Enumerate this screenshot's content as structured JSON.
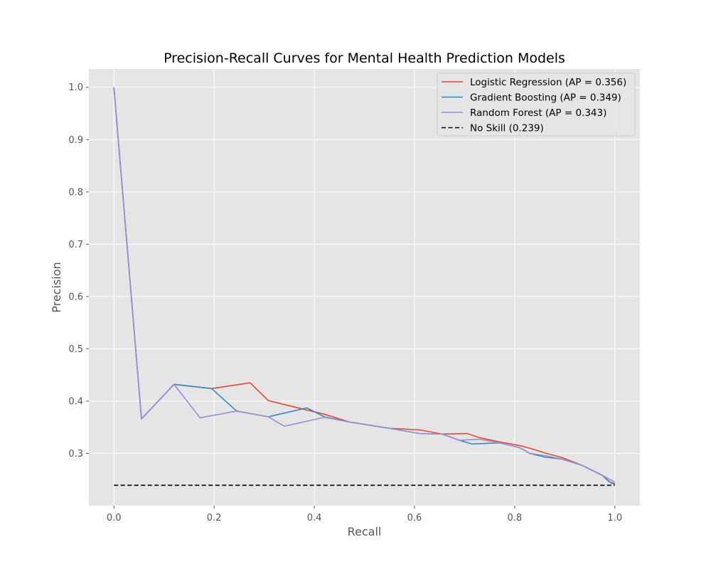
{
  "chart_data": {
    "type": "line",
    "title": "Precision-Recall Curves for Mental Health Prediction Models",
    "xlabel": "Recall",
    "ylabel": "Precision",
    "xlim": [
      -0.05,
      1.05
    ],
    "ylim": [
      0.2,
      1.035
    ],
    "xticks": [
      {
        "value": 0.0,
        "label": "0.0"
      },
      {
        "value": 0.2,
        "label": "0.2"
      },
      {
        "value": 0.4,
        "label": "0.4"
      },
      {
        "value": 0.6,
        "label": "0.6"
      },
      {
        "value": 0.8,
        "label": "0.8"
      },
      {
        "value": 1.0,
        "label": "1.0"
      }
    ],
    "yticks": [
      {
        "value": 0.3,
        "label": "0.3"
      },
      {
        "value": 0.4,
        "label": "0.4"
      },
      {
        "value": 0.5,
        "label": "0.5"
      },
      {
        "value": 0.6,
        "label": "0.6"
      },
      {
        "value": 0.7,
        "label": "0.7"
      },
      {
        "value": 0.8,
        "label": "0.8"
      },
      {
        "value": 0.9,
        "label": "0.9"
      },
      {
        "value": 1.0,
        "label": "1.0"
      }
    ],
    "grid": true,
    "background": "#e5e5e5",
    "legend_position": "top-right",
    "series": [
      {
        "name": "Logistic Regression (AP = 0.356)",
        "color": "#e24a33",
        "dash": "solid",
        "x": [
          0.0,
          0.055,
          0.12,
          0.195,
          0.272,
          0.308,
          0.385,
          0.42,
          0.47,
          0.55,
          0.61,
          0.655,
          0.705,
          0.73,
          0.77,
          0.81,
          0.83,
          0.86,
          0.895,
          0.935,
          0.975,
          0.99,
          1.0
        ],
        "y": [
          1.0,
          0.366,
          0.432,
          0.424,
          0.435,
          0.401,
          0.383,
          0.375,
          0.36,
          0.348,
          0.345,
          0.337,
          0.338,
          0.33,
          0.322,
          0.315,
          0.31,
          0.301,
          0.292,
          0.277,
          0.258,
          0.245,
          0.24
        ]
      },
      {
        "name": "Gradient Boosting (AP = 0.349)",
        "color": "#348abd",
        "dash": "solid",
        "x": [
          0.0,
          0.055,
          0.12,
          0.195,
          0.245,
          0.308,
          0.385,
          0.42,
          0.47,
          0.55,
          0.61,
          0.655,
          0.69,
          0.715,
          0.77,
          0.81,
          0.83,
          0.86,
          0.895,
          0.935,
          0.975,
          0.99,
          1.0
        ],
        "y": [
          1.0,
          0.366,
          0.432,
          0.424,
          0.381,
          0.37,
          0.387,
          0.37,
          0.36,
          0.348,
          0.338,
          0.337,
          0.325,
          0.318,
          0.32,
          0.311,
          0.3,
          0.293,
          0.289,
          0.277,
          0.258,
          0.245,
          0.242
        ]
      },
      {
        "name": "Random Forest (AP = 0.343)",
        "color": "#988ed5",
        "dash": "solid",
        "x": [
          0.0,
          0.055,
          0.12,
          0.172,
          0.245,
          0.308,
          0.34,
          0.42,
          0.47,
          0.55,
          0.61,
          0.655,
          0.69,
          0.73,
          0.77,
          0.81,
          0.83,
          0.86,
          0.895,
          0.935,
          0.975,
          0.99,
          1.0
        ],
        "y": [
          1.0,
          0.366,
          0.432,
          0.368,
          0.381,
          0.37,
          0.352,
          0.369,
          0.36,
          0.348,
          0.338,
          0.337,
          0.325,
          0.327,
          0.32,
          0.311,
          0.3,
          0.296,
          0.289,
          0.277,
          0.258,
          0.25,
          0.245
        ]
      },
      {
        "name": "No Skill (0.239)",
        "color": "#000000",
        "dash": "dashed",
        "x": [
          0.0,
          1.0
        ],
        "y": [
          0.239,
          0.239
        ]
      }
    ]
  }
}
